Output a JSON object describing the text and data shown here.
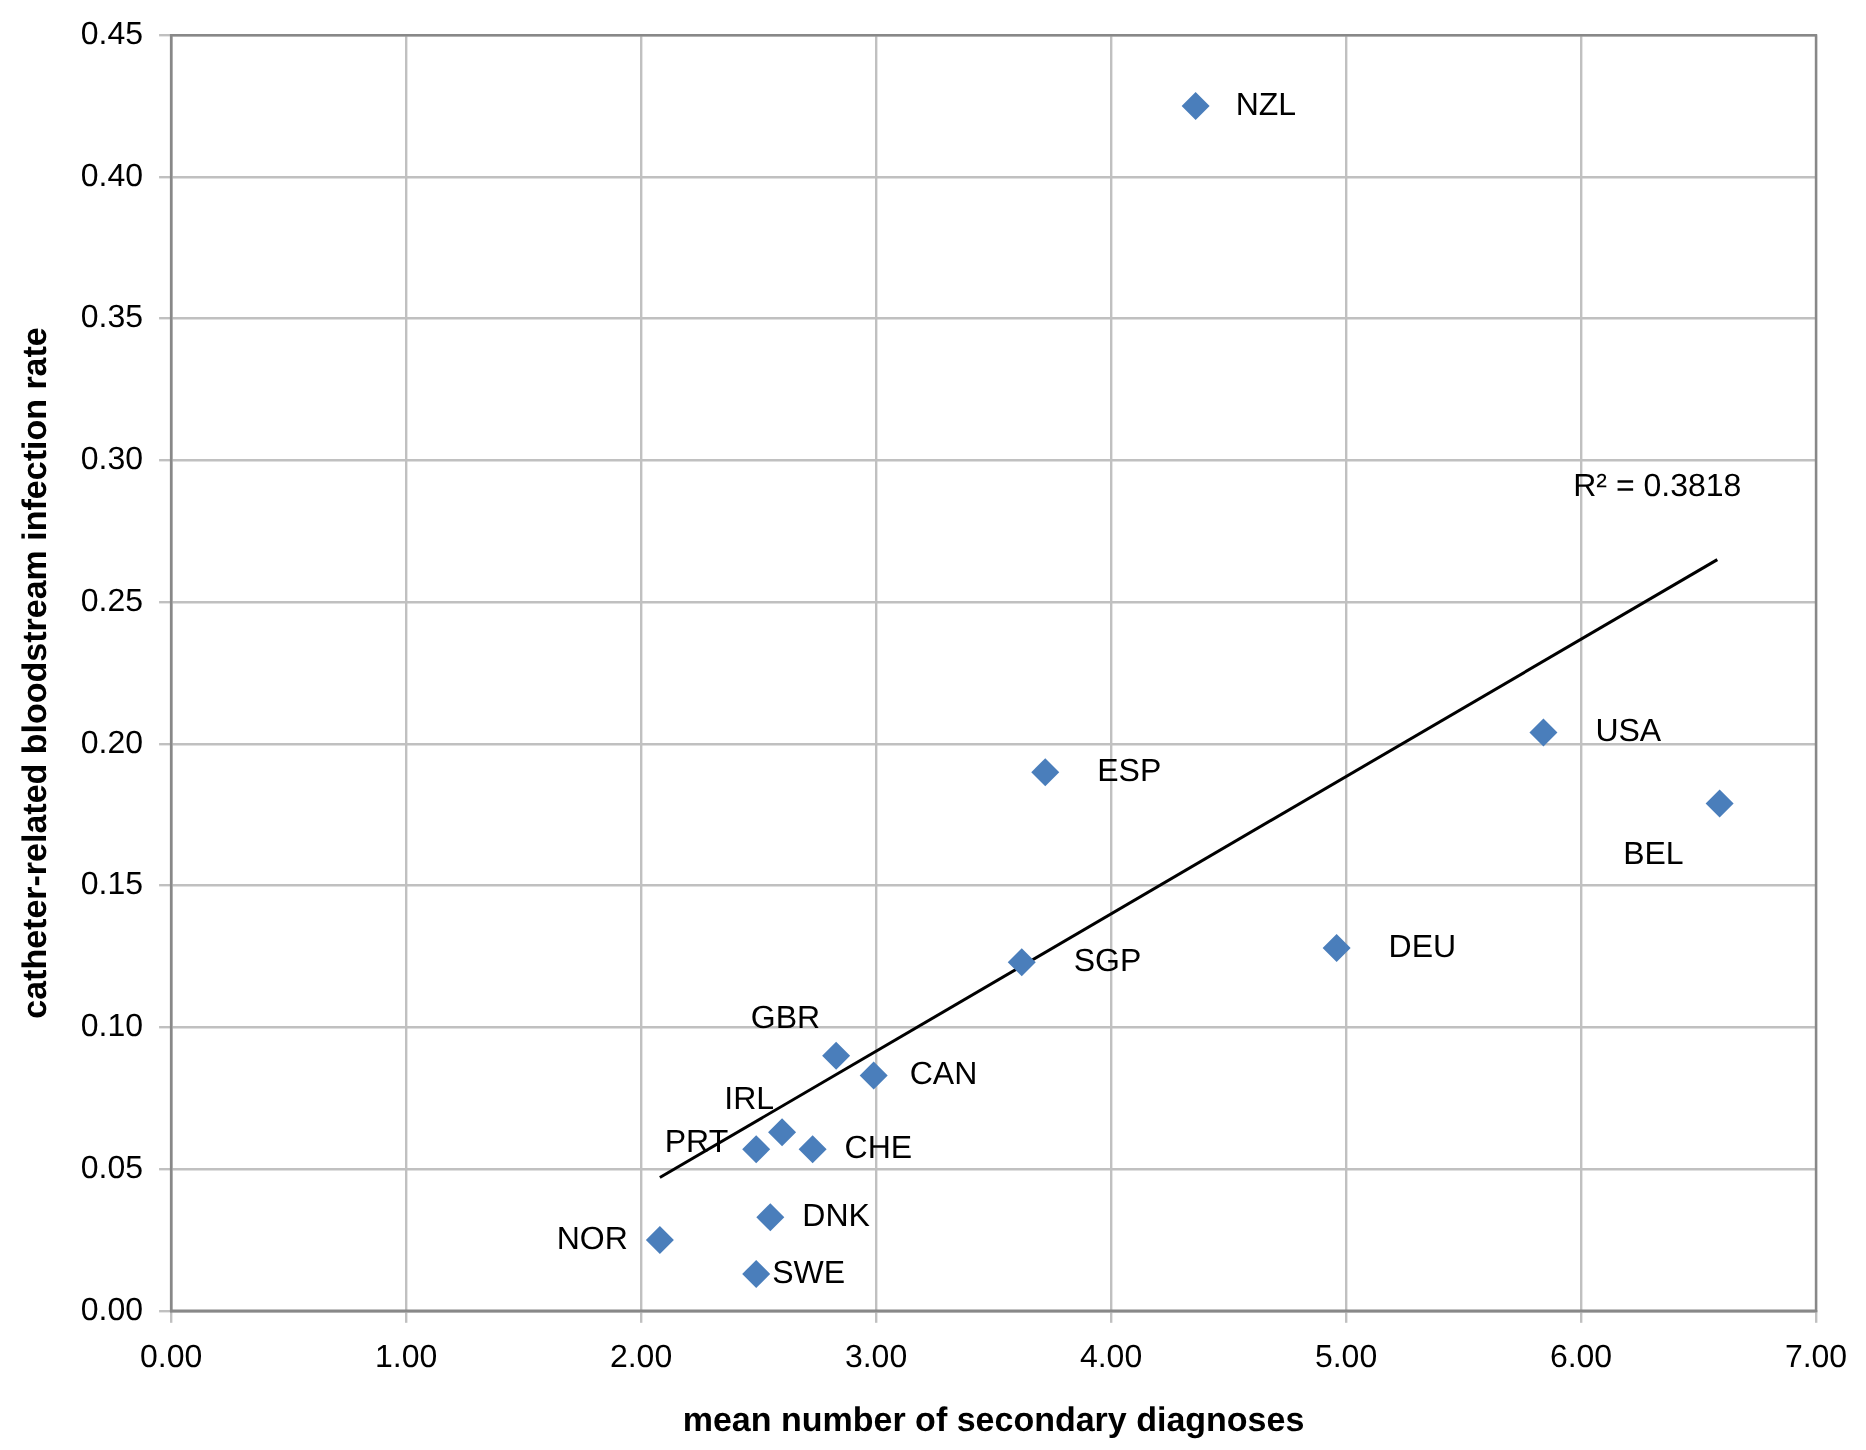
{
  "chart_data": {
    "type": "scatter",
    "xlabel": "mean number of secondary diagnoses",
    "ylabel": "catheter-related bloodstream infection rate",
    "xlim": [
      0,
      7
    ],
    "xticks": [
      {
        "value": 0,
        "label": "0.00"
      },
      {
        "value": 1,
        "label": "1.00"
      },
      {
        "value": 2,
        "label": "2.00"
      },
      {
        "value": 3,
        "label": "3.00"
      },
      {
        "value": 4,
        "label": "4.00"
      },
      {
        "value": 5,
        "label": "5.00"
      },
      {
        "value": 6,
        "label": "6.00"
      },
      {
        "value": 7,
        "label": "7.00"
      }
    ],
    "ylim": [
      0,
      0.45
    ],
    "yticks": [
      {
        "value": 0,
        "label": "0.00"
      },
      {
        "value": 0.05,
        "label": "0.05"
      },
      {
        "value": 0.1,
        "label": "0.10"
      },
      {
        "value": 0.15,
        "label": "0.15"
      },
      {
        "value": 0.2,
        "label": "0.20"
      },
      {
        "value": 0.25,
        "label": "0.25"
      },
      {
        "value": 0.3,
        "label": "0.30"
      },
      {
        "value": 0.35,
        "label": "0.35"
      },
      {
        "value": 0.4,
        "label": "0.40"
      },
      {
        "value": 0.45,
        "label": "0.45"
      }
    ],
    "grid": true,
    "legend": false,
    "series": [
      {
        "color": "#4a7ebb",
        "marker": "diamond",
        "x": [
          4.36,
          3.72,
          3.62,
          5.84,
          6.59,
          4.96,
          2.83,
          2.99,
          2.6,
          2.49,
          2.73,
          2.55,
          2.08,
          2.49
        ],
        "values": [
          0.425,
          0.19,
          0.123,
          0.204,
          0.179,
          0.128,
          0.09,
          0.083,
          0.063,
          0.057,
          0.057,
          0.033,
          0.025,
          0.013
        ],
        "value_labels": [
          "NZL",
          "ESP",
          "SGP",
          "USA",
          "BEL",
          "DEU",
          "GBR",
          "CAN",
          "IRL",
          "PRT",
          "CHE",
          "DNK",
          "NOR",
          "SWE"
        ]
      },
      {
        "type": "line",
        "color": "#000000",
        "marker": "none",
        "x": [
          2.08,
          6.58
        ],
        "values": [
          0.047,
          0.265
        ]
      }
    ],
    "annotations": [
      "R² = 0.3818"
    ]
  }
}
